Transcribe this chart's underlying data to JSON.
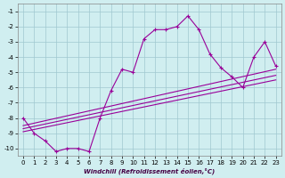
{
  "xlabel": "Windchill (Refroidissement éolien,°C)",
  "background_color": "#d0eef0",
  "grid_color": "#a0c8d0",
  "line_color": "#990099",
  "xlim": [
    -0.5,
    23.5
  ],
  "ylim_bottom": -10.5,
  "ylim_top": -0.5,
  "yticks": [
    -1,
    -2,
    -3,
    -4,
    -5,
    -6,
    -7,
    -8,
    -9,
    -10
  ],
  "xticks": [
    0,
    1,
    2,
    3,
    4,
    5,
    6,
    7,
    8,
    9,
    10,
    11,
    12,
    13,
    14,
    15,
    16,
    17,
    18,
    19,
    20,
    21,
    22,
    23
  ],
  "main_line_x": [
    0,
    1,
    2,
    3,
    4,
    5,
    6,
    7,
    8,
    9,
    10,
    11,
    12,
    13,
    14,
    15,
    16,
    17,
    18,
    19,
    20,
    21,
    22,
    23
  ],
  "main_line_y": [
    -8.0,
    -9.0,
    -9.5,
    -10.2,
    -10.0,
    -10.0,
    -10.2,
    -8.0,
    -6.2,
    -4.8,
    -5.0,
    -2.8,
    -2.2,
    -2.2,
    -2.0,
    -1.3,
    -2.2,
    -3.8,
    -4.7,
    -5.3,
    -6.0,
    -4.0,
    -3.0,
    -4.6
  ],
  "line2_x": [
    0,
    23
  ],
  "line2_y": [
    -8.5,
    -4.8
  ],
  "line3_x": [
    0,
    23
  ],
  "line3_y": [
    -8.7,
    -5.2
  ],
  "line4_x": [
    0,
    23
  ],
  "line4_y": [
    -8.9,
    -5.5
  ]
}
